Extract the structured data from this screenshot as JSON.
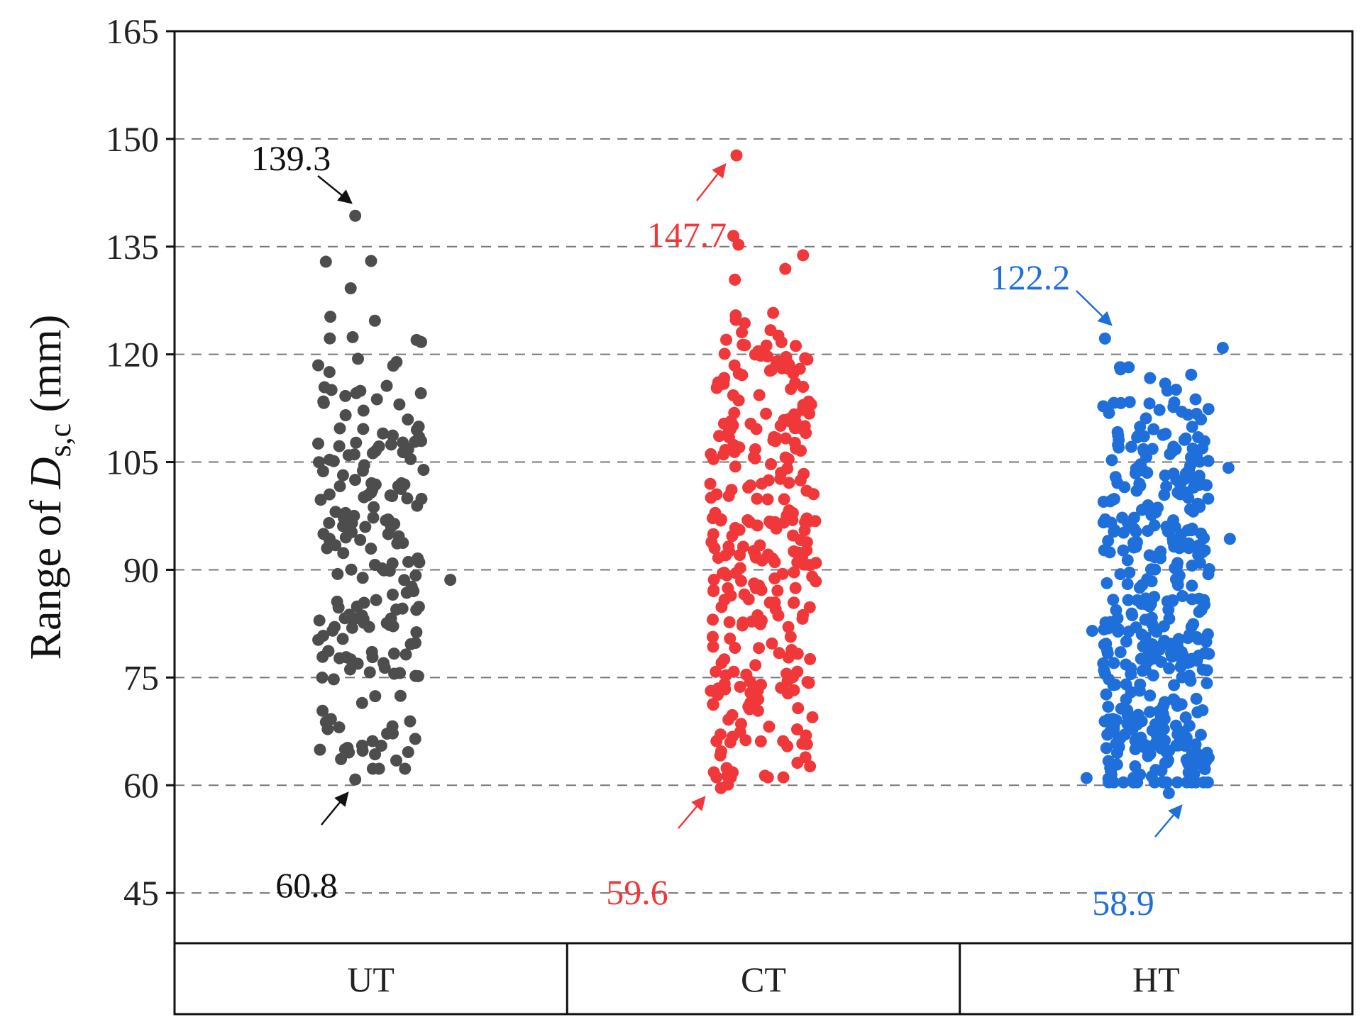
{
  "chart_data": {
    "type": "scatter",
    "ylabel": {
      "prefix": "Range of ",
      "var": "D",
      "sub": "s,c",
      "suffix": " (mm)"
    },
    "ylim": [
      38,
      165
    ],
    "yticks": [
      45,
      60,
      75,
      90,
      105,
      120,
      135,
      150,
      165
    ],
    "grid": "horizontal dashed",
    "categories": [
      "UT",
      "CT",
      "HT"
    ],
    "series": [
      {
        "category": "UT",
        "color": "#4d4d4d",
        "n": 200,
        "min": 60.8,
        "max": 139.3,
        "seed": 17,
        "dist": [
          [
            67,
            0.12
          ],
          [
            75,
            0.1
          ],
          [
            83,
            0.14
          ],
          [
            92,
            0.16
          ],
          [
            99,
            0.16
          ],
          [
            107,
            0.18
          ],
          [
            116,
            0.1
          ],
          [
            123,
            0.04
          ]
        ],
        "extra": [
          88.6,
          64.8,
          129.2,
          132.9,
          133.0
        ]
      },
      {
        "category": "CT",
        "color": "#f0383a",
        "n": 300,
        "min": 59.6,
        "max": 147.7,
        "seed": 29,
        "dist": [
          [
            66,
            0.06
          ],
          [
            72,
            0.12
          ],
          [
            80,
            0.12
          ],
          [
            88,
            0.15
          ],
          [
            95,
            0.17
          ],
          [
            103,
            0.14
          ],
          [
            111,
            0.12
          ],
          [
            119,
            0.09
          ],
          [
            128,
            0.03
          ]
        ],
        "extra": [
          136.5,
          133.8,
          131.9,
          130.4,
          60.1,
          61.8,
          121.7
        ]
      },
      {
        "category": "HT",
        "color": "#1f6fdb",
        "n": 420,
        "min": 58.9,
        "max": 122.2,
        "seed": 41,
        "dist": [
          [
            64,
            0.22
          ],
          [
            70,
            0.08
          ],
          [
            77,
            0.18
          ],
          [
            84,
            0.12
          ],
          [
            92,
            0.14
          ],
          [
            100,
            0.12
          ],
          [
            107,
            0.1
          ],
          [
            114,
            0.04
          ]
        ],
        "extra": [
          120.9,
          61.0,
          81.5,
          94.3,
          104.2
        ]
      }
    ],
    "annotations": [
      {
        "category": "UT",
        "text": "139.3",
        "value": 139.3,
        "color": "#111111",
        "kind": "max"
      },
      {
        "category": "UT",
        "text": "60.8",
        "value": 60.8,
        "color": "#111111",
        "kind": "min"
      },
      {
        "category": "CT",
        "text": "147.7",
        "value": 147.7,
        "color": "#f0383a",
        "kind": "max"
      },
      {
        "category": "CT",
        "text": "59.6",
        "value": 59.6,
        "color": "#f0383a",
        "kind": "min"
      },
      {
        "category": "HT",
        "text": "122.2",
        "value": 122.2,
        "color": "#1f6fdb",
        "kind": "max"
      },
      {
        "category": "HT",
        "text": "58.9",
        "value": 58.9,
        "color": "#1f6fdb",
        "kind": "min"
      }
    ]
  }
}
